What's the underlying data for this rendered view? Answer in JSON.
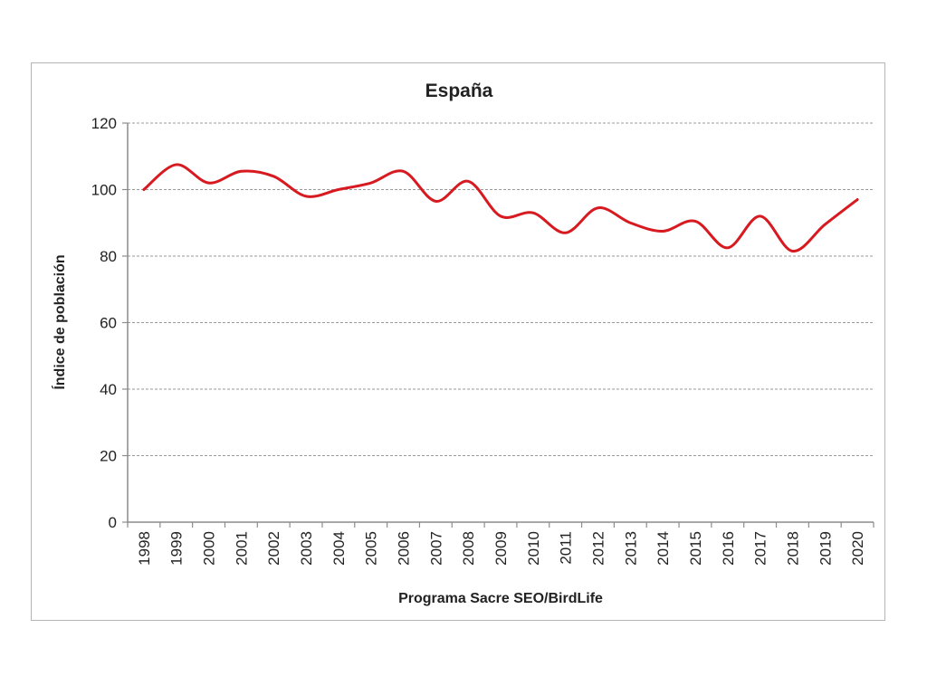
{
  "chart_data": {
    "type": "line",
    "title": "España",
    "xlabel": "Programa Sacre SEO/BirdLife",
    "ylabel": "Índice de población",
    "ylim": [
      0,
      120
    ],
    "yticks": [
      0,
      20,
      40,
      60,
      80,
      100,
      120
    ],
    "grid": true,
    "legend": "none",
    "categories": [
      "1998",
      "1999",
      "2000",
      "2001",
      "2002",
      "2003",
      "2004",
      "2005",
      "2006",
      "2007",
      "2008",
      "2009",
      "2010",
      "2011",
      "2012",
      "2013",
      "2014",
      "2015",
      "2016",
      "2017",
      "2018",
      "2019",
      "2020"
    ],
    "series": [
      {
        "color": "#d71920",
        "values": [
          100,
          107.5,
          102,
          105.5,
          104,
          98,
          100,
          102,
          105.5,
          96.5,
          102.5,
          92,
          93,
          87,
          94.5,
          90,
          87.5,
          90.5,
          82.5,
          92,
          81.5,
          89.5,
          97
        ]
      }
    ]
  }
}
